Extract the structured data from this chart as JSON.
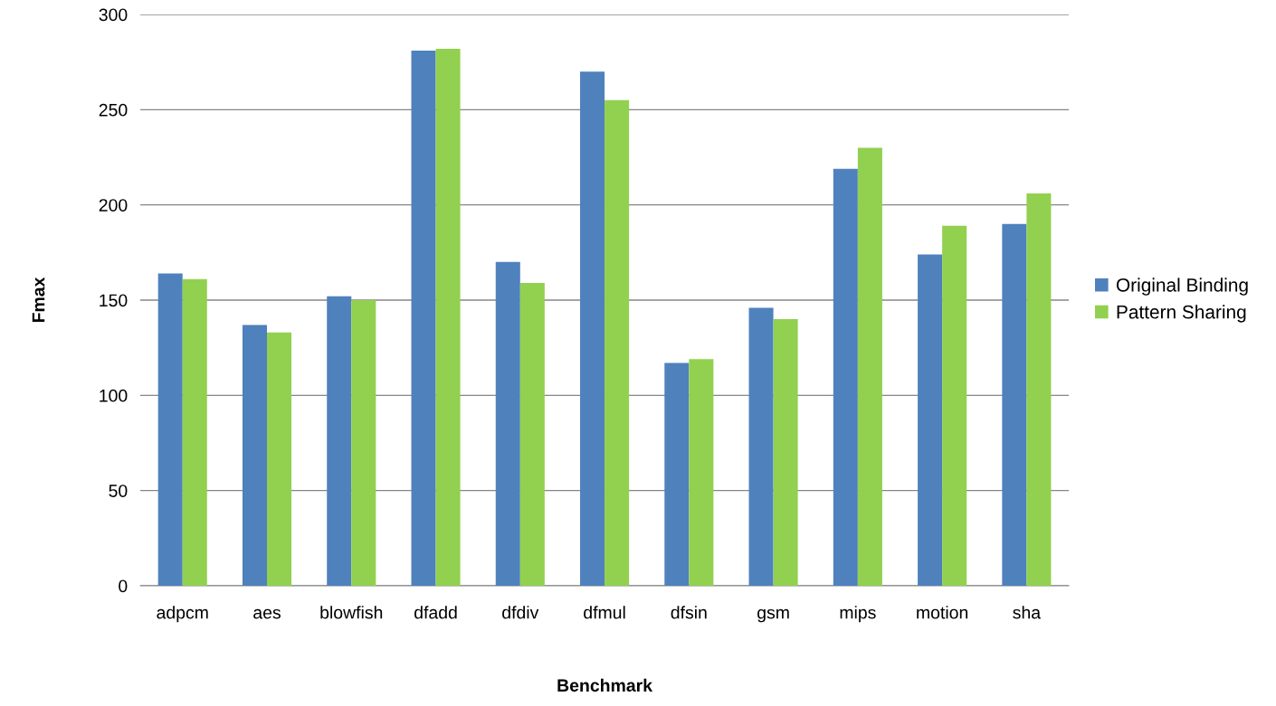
{
  "chart_data": {
    "type": "bar",
    "xlabel": "Benchmark",
    "ylabel": "Fmax",
    "categories": [
      "adpcm",
      "aes",
      "blowfish",
      "dfadd",
      "dfdiv",
      "dfmul",
      "dfsin",
      "gsm",
      "mips",
      "motion",
      "sha"
    ],
    "series": [
      {
        "name": "Original Binding",
        "color": "#4f81bd",
        "values": [
          164,
          137,
          152,
          281,
          170,
          270,
          117,
          146,
          219,
          174,
          190
        ]
      },
      {
        "name": "Pattern Sharing",
        "color": "#92d050",
        "values": [
          161,
          133,
          150,
          282,
          159,
          255,
          119,
          140,
          230,
          189,
          206
        ]
      }
    ],
    "ylim": [
      0,
      300
    ],
    "yticks": [
      0,
      50,
      100,
      150,
      200,
      250,
      300
    ],
    "grid": "y",
    "legend": "right"
  }
}
